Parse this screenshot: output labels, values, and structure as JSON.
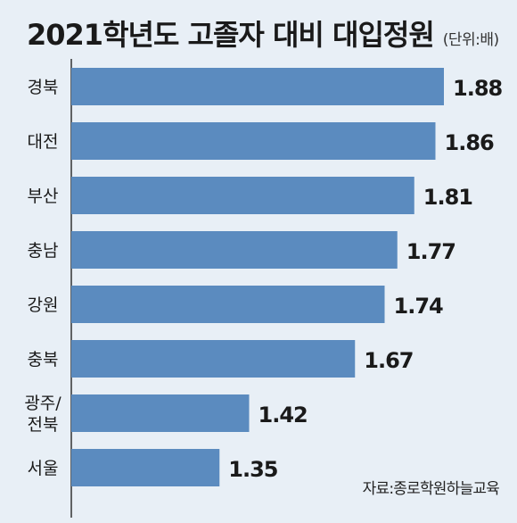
{
  "chart_data": {
    "type": "bar",
    "orientation": "horizontal",
    "title": "2021학년도 고졸자 대비 대입정원",
    "unit": "(단위:배)",
    "categories": [
      "경북",
      "대전",
      "부산",
      "충남",
      "강원",
      "충북",
      "광주/\n전북",
      "서울"
    ],
    "values": [
      1.88,
      1.86,
      1.81,
      1.77,
      1.74,
      1.67,
      1.42,
      1.35
    ],
    "value_labels": [
      "1.88",
      "1.86",
      "1.81",
      "1.77",
      "1.74",
      "1.67",
      "1.42",
      "1.35"
    ],
    "xlabel": "",
    "ylabel": "",
    "grid": false,
    "source": "자료:종로학원하늘교육",
    "colors": {
      "bar": "#5b8bbf",
      "background": "#e8eff6",
      "axis": "#333333",
      "text": "#1a1a1a"
    }
  }
}
